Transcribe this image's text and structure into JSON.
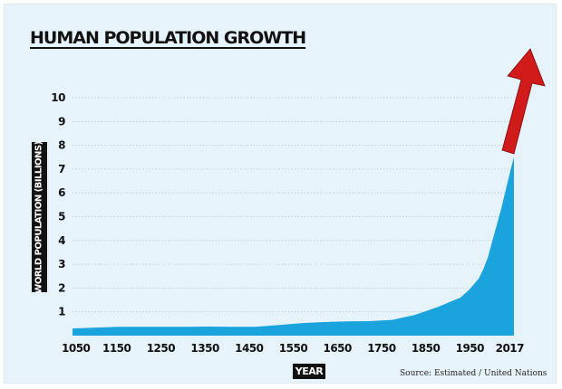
{
  "chart_data": {
    "type": "area",
    "title": "HUMAN POPULATION GROWTH",
    "xlabel": "YEAR",
    "ylabel": "WORLD POPULATION (BILLIONS)",
    "source": "Source: Estimated / United Nations",
    "x_ticks": [
      "1050",
      "1150",
      "1250",
      "1350",
      "1450",
      "1550",
      "1650",
      "1750",
      "1850",
      "1950",
      "2017"
    ],
    "y_ticks": [
      "1",
      "2",
      "3",
      "4",
      "5",
      "6",
      "7",
      "8",
      "9",
      "10"
    ],
    "xlim": [
      1050,
      2017
    ],
    "ylim": [
      0,
      10
    ],
    "grid": true,
    "series": [
      {
        "x": [
          1050,
          1100,
          1150,
          1200,
          1250,
          1300,
          1350,
          1400,
          1450,
          1500,
          1550,
          1600,
          1650,
          1700,
          1750,
          1800,
          1850,
          1900,
          1920,
          1940,
          1950,
          1960,
          1970,
          1980,
          1990,
          2000,
          2010,
          2017
        ],
        "y": [
          0.3,
          0.34,
          0.37,
          0.37,
          0.37,
          0.37,
          0.38,
          0.37,
          0.37,
          0.44,
          0.52,
          0.57,
          0.6,
          0.61,
          0.66,
          0.87,
          1.2,
          1.6,
          1.95,
          2.4,
          2.8,
          3.3,
          4.0,
          4.7,
          5.4,
          6.2,
          7.0,
          7.5
        ]
      }
    ],
    "colors": {
      "area": "#1ba3de",
      "arrow": "#d11a1a",
      "grid": "#b9c8d2",
      "background": "#e7f3fb"
    },
    "annotation": "red-up-arrow"
  }
}
